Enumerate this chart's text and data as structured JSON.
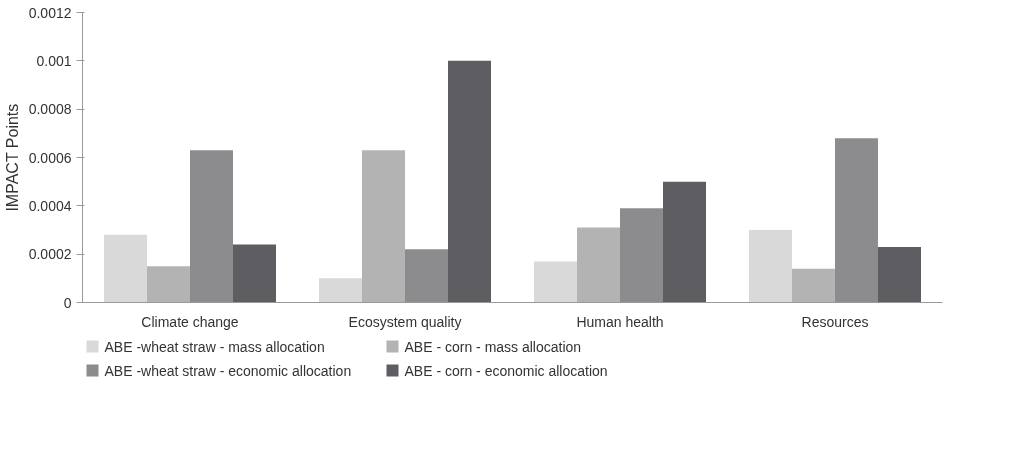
{
  "chart_data": {
    "type": "bar",
    "ylabel": "IMPACT Points",
    "categories": [
      "Climate change",
      "Ecosystem quality",
      "Human health",
      "Resources"
    ],
    "series": [
      {
        "name": "ABE -wheat straw - mass allocation",
        "color": "#d9d9d9",
        "values": [
          0.00028,
          0.0001,
          0.00017,
          0.0003
        ]
      },
      {
        "name": "ABE - corn - mass allocation",
        "color": "#b3b3b3",
        "values": [
          0.00015,
          0.00063,
          0.00031,
          0.00014
        ]
      },
      {
        "name": "ABE -wheat straw - economic allocation",
        "color": "#8c8c8f",
        "values": [
          0.00063,
          0.00022,
          0.00039,
          0.00068
        ]
      },
      {
        "name": "ABE - corn - economic allocation",
        "color": "#5e5e62",
        "values": [
          0.00024,
          0.001,
          0.0005,
          0.00023
        ]
      }
    ],
    "ylim": [
      0,
      0.0012
    ],
    "yticks": [
      0,
      0.0002,
      0.0004,
      0.0006,
      0.0008,
      0.001,
      0.0012
    ],
    "grid": false,
    "legend": "bottom"
  }
}
